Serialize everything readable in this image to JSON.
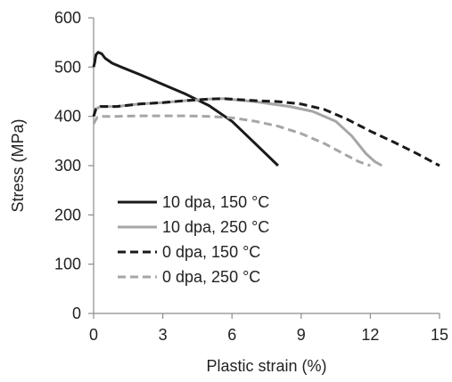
{
  "chart_data": {
    "type": "line",
    "xlabel": "Plastic strain (%)",
    "ylabel": "Stress (MPa)",
    "xlim": [
      0,
      15
    ],
    "ylim": [
      0,
      600
    ],
    "xticks": [
      0,
      3,
      6,
      9,
      12,
      15
    ],
    "yticks": [
      0,
      100,
      200,
      300,
      400,
      500,
      600
    ],
    "grid": false,
    "legend_position": "bottom-left",
    "series": [
      {
        "name": "10 dpa, 150 °C",
        "color": "#1a1a1a",
        "dash": "solid",
        "points": [
          [
            0,
            500
          ],
          [
            0.05,
            510
          ],
          [
            0.1,
            525
          ],
          [
            0.2,
            530
          ],
          [
            0.35,
            527
          ],
          [
            0.5,
            518
          ],
          [
            0.8,
            508
          ],
          [
            1.2,
            500
          ],
          [
            2,
            485
          ],
          [
            3,
            465
          ],
          [
            4,
            445
          ],
          [
            5,
            422
          ],
          [
            6,
            390
          ],
          [
            7,
            345
          ],
          [
            8,
            300
          ]
        ]
      },
      {
        "name": "10 dpa, 250 °C",
        "color": "#a6a6a6",
        "dash": "solid",
        "points": [
          [
            0,
            400
          ],
          [
            0.1,
            415
          ],
          [
            0.3,
            420
          ],
          [
            1,
            420
          ],
          [
            2,
            425
          ],
          [
            3,
            428
          ],
          [
            4,
            432
          ],
          [
            5,
            435
          ],
          [
            5.6,
            436
          ],
          [
            7,
            430
          ],
          [
            8.5,
            420
          ],
          [
            9.5,
            410
          ],
          [
            10.5,
            390
          ],
          [
            11.2,
            360
          ],
          [
            11.8,
            325
          ],
          [
            12.2,
            308
          ],
          [
            12.5,
            300
          ]
        ]
      },
      {
        "name": "0 dpa, 150 °C",
        "color": "#1a1a1a",
        "dash": "dashed",
        "points": [
          [
            0,
            400
          ],
          [
            0.1,
            415
          ],
          [
            0.3,
            420
          ],
          [
            1,
            420
          ],
          [
            2,
            425
          ],
          [
            3,
            428
          ],
          [
            4,
            432
          ],
          [
            5,
            435
          ],
          [
            5.6,
            436
          ],
          [
            7,
            432
          ],
          [
            8,
            430
          ],
          [
            9,
            425
          ],
          [
            10,
            414
          ],
          [
            11,
            394
          ],
          [
            12,
            370
          ],
          [
            13,
            348
          ],
          [
            14,
            325
          ],
          [
            15,
            300
          ]
        ]
      },
      {
        "name": "0 dpa, 250 °C",
        "color": "#a6a6a6",
        "dash": "dashed",
        "points": [
          [
            0,
            385
          ],
          [
            0.15,
            398
          ],
          [
            0.4,
            400
          ],
          [
            1,
            400
          ],
          [
            2,
            401
          ],
          [
            3,
            401
          ],
          [
            4,
            401
          ],
          [
            5,
            400
          ],
          [
            6,
            397
          ],
          [
            7,
            390
          ],
          [
            8,
            380
          ],
          [
            9,
            365
          ],
          [
            10,
            345
          ],
          [
            10.8,
            325
          ],
          [
            11.5,
            308
          ],
          [
            12,
            300
          ]
        ]
      }
    ]
  }
}
